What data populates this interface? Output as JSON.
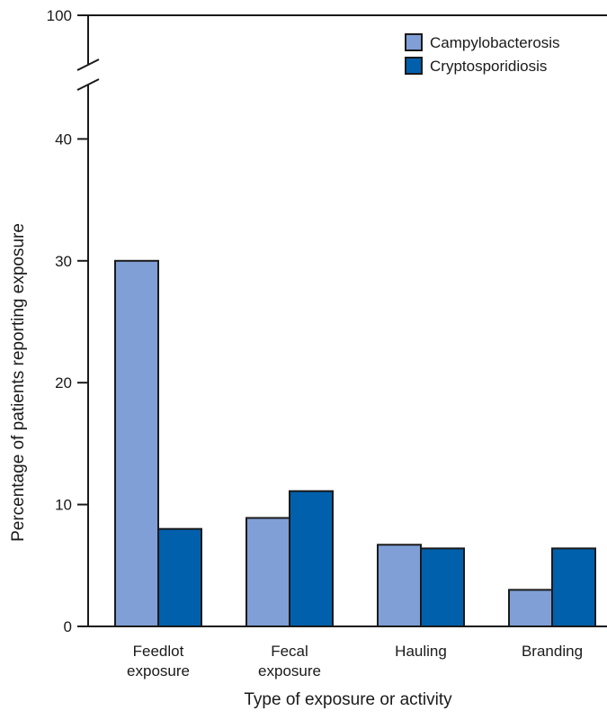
{
  "chart_data": {
    "type": "bar",
    "title": "",
    "xlabel": "Type of exposure or activity",
    "ylabel": "Percentage of patients reporting exposure",
    "categories": [
      [
        "Feedlot",
        "exposure"
      ],
      [
        "Fecal",
        "exposure"
      ],
      [
        "Hauling"
      ],
      [
        "Branding"
      ]
    ],
    "series": [
      {
        "name": "Campylobacterosis",
        "color": "#7f9fd6",
        "values": [
          30,
          8.9,
          6.7,
          3.0
        ]
      },
      {
        "name": "Cryptosporidiosis",
        "color": "#0060ac",
        "values": [
          8.0,
          11.1,
          6.4,
          6.4
        ]
      }
    ],
    "ylim": [
      0,
      40
    ],
    "axis_break": true,
    "yticks": [
      0,
      10,
      20,
      30,
      40
    ],
    "ytick_top": 100,
    "grid": false,
    "legend_position": "top-right"
  }
}
